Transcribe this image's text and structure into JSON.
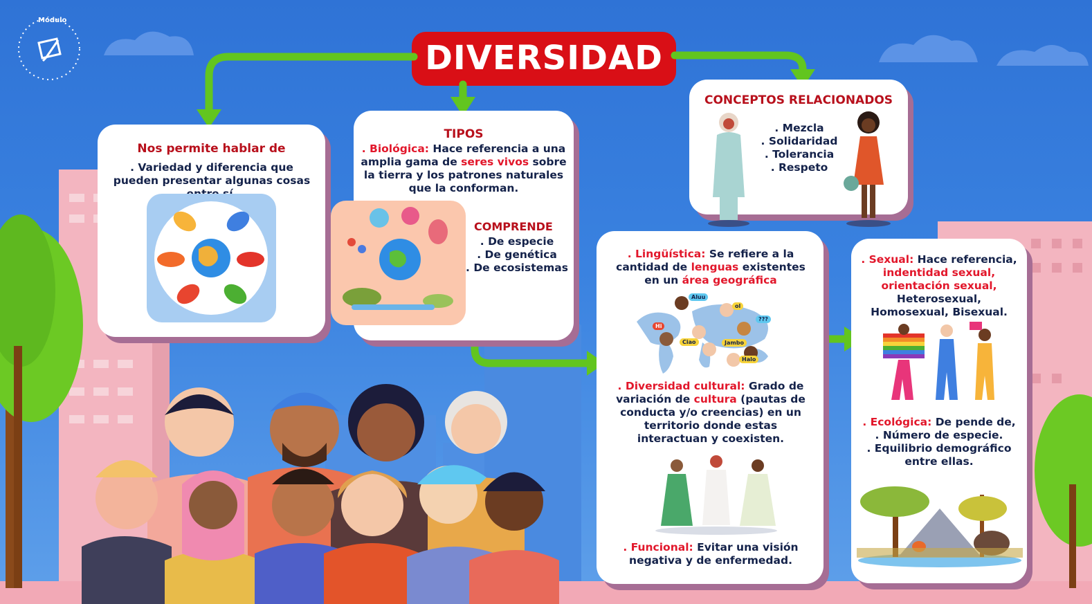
{
  "logo": {
    "text": "Módulo"
  },
  "title": "DIVERSIDAD",
  "colors": {
    "accent_red": "#d90f16",
    "arrow_green": "#62c51f",
    "text_red": "#e2172b",
    "heading_red": "#b8101c",
    "text_dark": "#14224a",
    "card_shadow": "#a66d94"
  },
  "box1": {
    "heading": "Nos permite hablar de",
    "text": ". Variedad y diferencia que pueden presentar algunas cosas entre sí."
  },
  "tipos": {
    "heading": "TIPOS",
    "biologica": {
      "label": ". Biológica:",
      "t1": " Hace referencia a una amplia gama de ",
      "hl": "seres vivos",
      "t2": " sobre la tierra y los patrones naturales que la conforman."
    },
    "comprende": {
      "heading": "COMPRENDE",
      "items": [
        ". De especie",
        ". De genética",
        ". De ecosistemas"
      ]
    }
  },
  "conceptos": {
    "heading": "CONCEPTOS RELACIONADOS",
    "items": [
      ". Mezcla",
      ". Solidaridad",
      ". Tolerancia",
      ". Respeto"
    ]
  },
  "linguistica": {
    "label": ". Lingüística:",
    "t1": " Se refiere a la cantidad de ",
    "hl1": "lenguas",
    "t2": " existentes en un ",
    "hl2": "área geográfica",
    "bubbles": [
      "Aluu",
      "ol",
      "Hi",
      "Ciao",
      "Jambo",
      "Halo",
      "???"
    ]
  },
  "cultural": {
    "label": ". Diversidad cultural:",
    "t1": " Grado de variación de ",
    "hl": "cultura",
    "t2": " (pautas de conducta y/o creencias) en un territorio donde estas interactuan y coexisten."
  },
  "funcional": {
    "label": ". Funcional:",
    "t1": " Evitar una visión negativa y de enfermedad."
  },
  "sexual": {
    "label": ". Sexual:",
    "t1": " Hace referencia, ",
    "hl1": "indentidad sexual,",
    "hl2": "orientación sexual,",
    "t2": " Heterosexual, Homosexual, Bisexual."
  },
  "ecologica": {
    "label": ". Ecológica:",
    "t1": " De pende de,",
    "items": [
      ". Número de especie.",
      ". Equilibrio demográfico entre ellas."
    ]
  }
}
